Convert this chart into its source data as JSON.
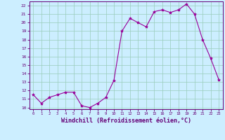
{
  "hours": [
    0,
    1,
    2,
    3,
    4,
    5,
    6,
    7,
    8,
    9,
    10,
    11,
    12,
    13,
    14,
    15,
    16,
    17,
    18,
    19,
    20,
    21,
    22,
    23
  ],
  "values": [
    11.5,
    10.5,
    11.2,
    11.5,
    11.8,
    11.8,
    10.2,
    10.0,
    10.5,
    11.2,
    13.2,
    19.0,
    20.5,
    20.0,
    19.5,
    21.3,
    21.5,
    21.2,
    21.5,
    22.2,
    21.0,
    18.0,
    15.8,
    13.3
  ],
  "xlim": [
    -0.5,
    23.5
  ],
  "ylim": [
    9.8,
    22.5
  ],
  "yticks": [
    10,
    11,
    12,
    13,
    14,
    15,
    16,
    17,
    18,
    19,
    20,
    21,
    22
  ],
  "xticks": [
    0,
    1,
    2,
    3,
    4,
    5,
    6,
    7,
    8,
    9,
    10,
    11,
    12,
    13,
    14,
    15,
    16,
    17,
    18,
    19,
    20,
    21,
    22,
    23
  ],
  "xlabel": "Windchill (Refroidissement éolien,°C)",
  "line_color": "#990099",
  "marker": "*",
  "bg_color": "#cceeff",
  "grid_color": "#99ccbb",
  "axis_color": "#660077",
  "tick_color": "#660077",
  "label_color": "#660077"
}
